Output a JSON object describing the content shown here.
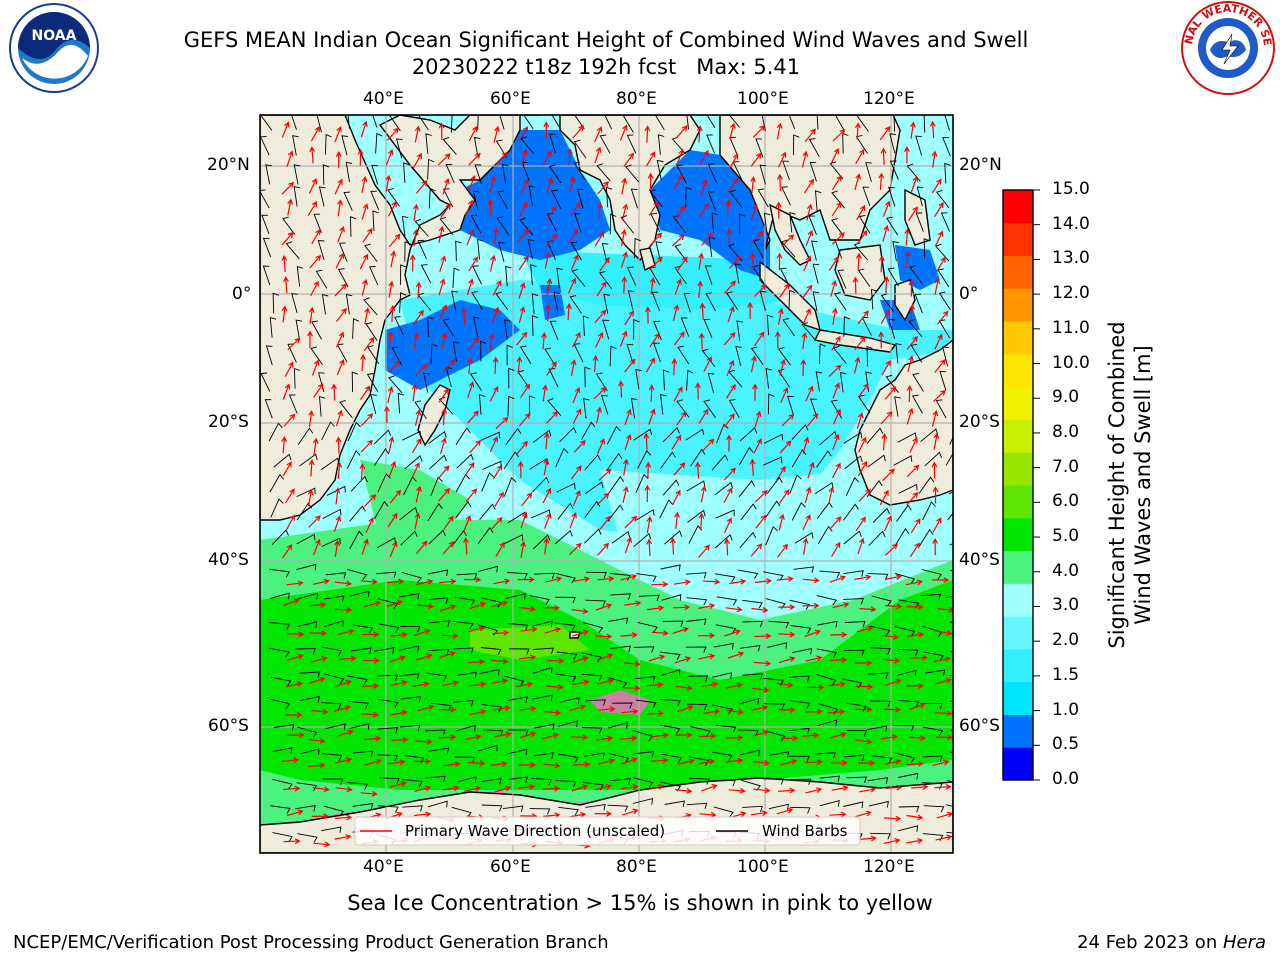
{
  "title": {
    "line1": "GEFS MEAN Indian Ocean Significant Height of Combined Wind Waves and Swell",
    "line2": "20230222 t18z 192h fcst   Max: 5.41"
  },
  "logos": {
    "left": {
      "icon": "noaa-logo",
      "text": "NOAA"
    },
    "right": {
      "icon": "nws-logo",
      "text": "NATIONAL WEATHER SERVICE"
    }
  },
  "map": {
    "lon_ticks": [
      "40°E",
      "60°E",
      "80°E",
      "100°E",
      "120°E"
    ],
    "lat_ticks": [
      "20°N",
      "0°",
      "20°S",
      "40°S",
      "60°S"
    ],
    "extent": {
      "lon": [
        20,
        130
      ],
      "lat": [
        -72,
        28
      ]
    },
    "land_color": "#efecdc",
    "legend": {
      "wave": "Primary Wave Direction (unscaled)",
      "wind": "Wind Barbs"
    },
    "note": "Sea Ice Concentration > 15% is shown in pink to yellow"
  },
  "colorbar": {
    "label_line1": "Significant Height of Combined",
    "label_line2": "Wind Waves and Swell [m]",
    "ticks": [
      "0.0",
      "0.5",
      "1.0",
      "1.5",
      "2.0",
      "3.0",
      "4.0",
      "5.0",
      "6.0",
      "7.0",
      "8.0",
      "9.0",
      "10.0",
      "11.0",
      "12.0",
      "13.0",
      "14.0",
      "15.0"
    ],
    "colors": [
      "#0000ff",
      "#0073ff",
      "#00e5ff",
      "#33f0ff",
      "#66f6ff",
      "#a0ffff",
      "#4cf27f",
      "#00e600",
      "#5ee600",
      "#98e600",
      "#c8f000",
      "#f0f000",
      "#ffe600",
      "#ffc800",
      "#ff9600",
      "#ff6400",
      "#ff3200",
      "#ff0000"
    ]
  },
  "footer": {
    "left": "NCEP/EMC/Verification Post Processing Product Generation Branch",
    "right_date": "24 Feb 2023 on ",
    "right_host": "Hera"
  }
}
